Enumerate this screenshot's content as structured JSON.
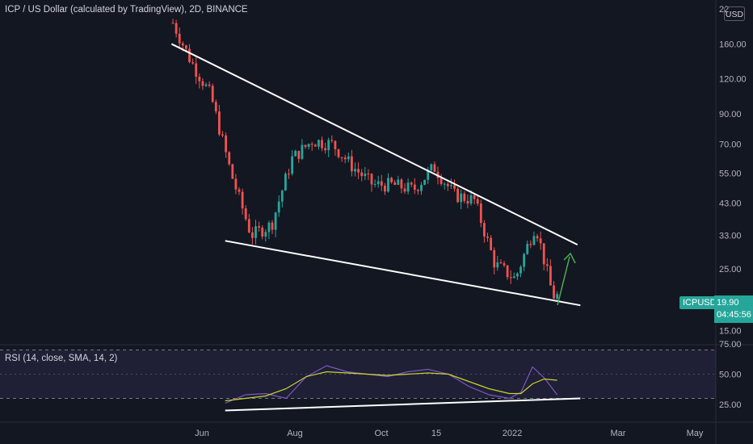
{
  "header": {
    "title": "ICP / US Dollar (calculated by TradingView), 2D, BINANCE",
    "currency": "USD"
  },
  "price_axis": {
    "ticks": [
      {
        "label": "160.00",
        "value": 160
      },
      {
        "label": "120.00",
        "value": 120
      },
      {
        "label": "90.00",
        "value": 90
      },
      {
        "label": "70.00",
        "value": 70
      },
      {
        "label": "55.00",
        "value": 55
      },
      {
        "label": "43.00",
        "value": 43
      },
      {
        "label": "33.00",
        "value": 33
      },
      {
        "label": "25.00",
        "value": 25
      },
      {
        "label": "15.00",
        "value": 15
      }
    ],
    "top_partial_label": "22"
  },
  "price_tag": {
    "symbol": "ICPUSD",
    "price": "19.90",
    "countdown": "04:45:56"
  },
  "rsi": {
    "title": "RSI (14, close, SMA, 14, 2)",
    "ticks": [
      {
        "label": "75.00",
        "value": 75
      },
      {
        "label": "50.00",
        "value": 50
      },
      {
        "label": "25.00",
        "value": 25
      }
    ],
    "band_upper": 70,
    "band_lower": 30
  },
  "time_axis": {
    "labels": [
      "Jun",
      "Aug",
      "Oct",
      "15",
      "2022",
      "Mar",
      "May"
    ]
  },
  "colors": {
    "background": "#131722",
    "up_candle": "#26a69a",
    "down_candle": "#ef5350",
    "trendline": "#ffffff",
    "arrow": "#4caf50",
    "rsi_line": "#7e57c2",
    "rsi_sma": "#c8d430"
  },
  "chart_data": {
    "type": "candlestick",
    "symbol": "ICPUSD",
    "interval": "2D",
    "scale": "log",
    "yrange": [
      14,
      230
    ],
    "x": [
      "2021-05-10",
      "2021-05-24",
      "2021-06-07",
      "2021-06-21",
      "2021-07-05",
      "2021-07-19",
      "2021-08-02",
      "2021-08-16",
      "2021-08-30",
      "2021-09-13",
      "2021-09-27",
      "2021-10-11",
      "2021-10-25",
      "2021-11-08",
      "2021-11-22",
      "2021-12-06",
      "2021-12-20",
      "2022-01-03",
      "2022-01-17",
      "2022-01-29"
    ],
    "close": [
      200,
      140,
      105,
      55,
      33,
      36,
      62,
      72,
      70,
      58,
      50,
      50,
      48,
      58,
      46,
      44,
      26,
      23,
      36,
      20
    ],
    "trendlines": [
      {
        "name": "upper",
        "from": {
          "x": "2021-05-11",
          "y": 160
        },
        "to": {
          "x": "2022-02-15",
          "y": 30.5
        }
      },
      {
        "name": "lower",
        "from": {
          "x": "2021-06-17",
          "y": 31.5
        },
        "to": {
          "x": "2022-02-17",
          "y": 18.5
        }
      }
    ],
    "rsi": {
      "x": [
        "2021-06-17",
        "2021-07-01",
        "2021-07-15",
        "2021-07-29",
        "2021-08-12",
        "2021-08-26",
        "2021-09-09",
        "2021-09-23",
        "2021-10-07",
        "2021-10-21",
        "2021-11-04",
        "2021-11-18",
        "2021-12-02",
        "2021-12-16",
        "2021-12-30",
        "2022-01-07",
        "2022-01-15",
        "2022-01-23",
        "2022-02-01"
      ],
      "values": [
        26,
        33,
        34,
        30,
        48,
        57,
        52,
        50,
        48,
        52,
        54,
        50,
        40,
        33,
        30,
        35,
        56,
        47,
        33
      ],
      "sma": [
        28,
        30,
        32,
        38,
        48,
        52,
        51,
        50,
        49,
        50,
        51,
        50,
        44,
        38,
        34,
        34,
        42,
        46,
        45
      ]
    },
    "rsi_trendline": {
      "from": {
        "x": "2021-06-17",
        "y": 20
      },
      "to": {
        "x": "2022-02-17",
        "y": 30
      }
    }
  }
}
